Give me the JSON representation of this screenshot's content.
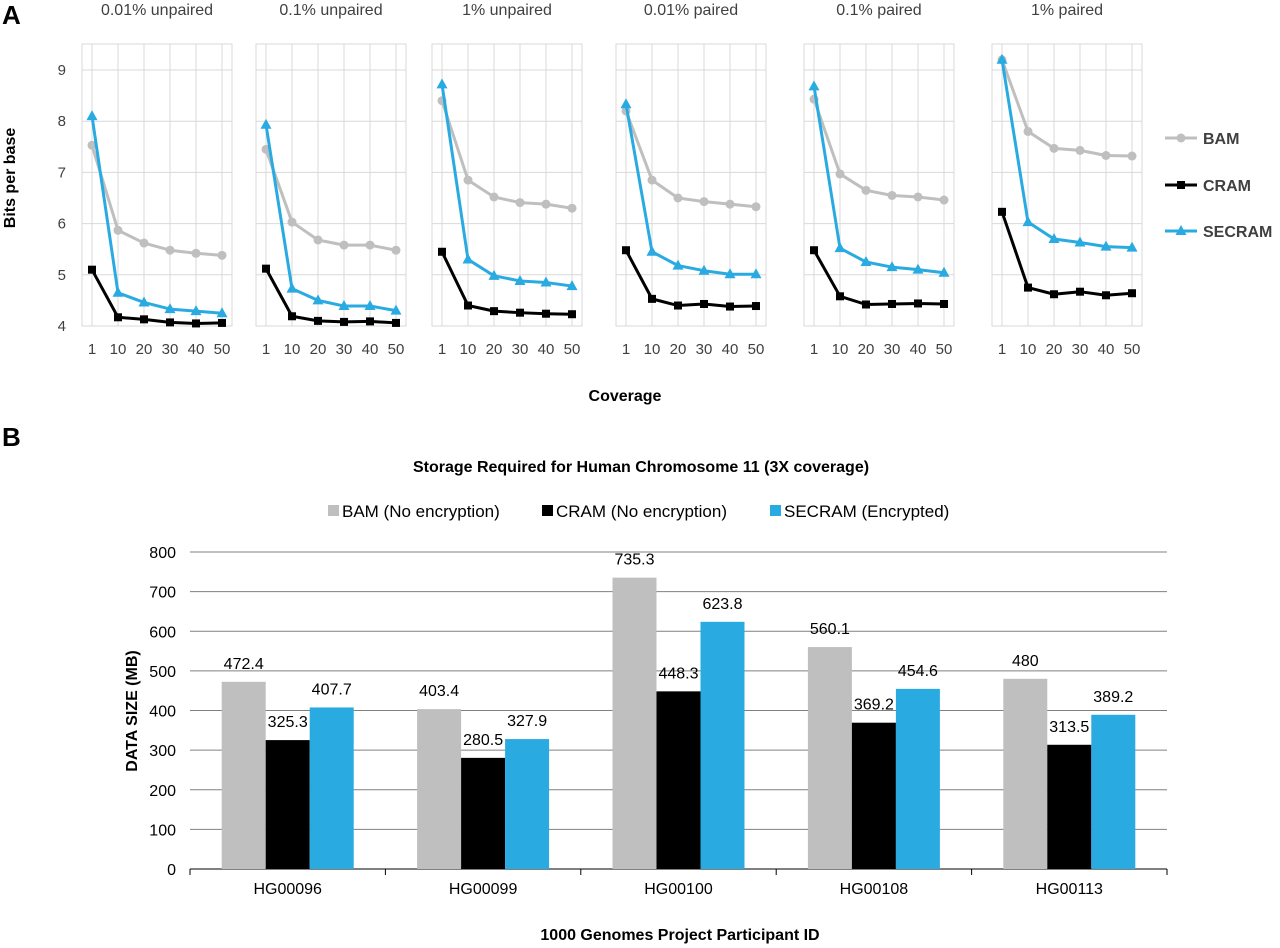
{
  "chart_data": [
    {
      "panel_label": "A",
      "type": "line",
      "facets": [
        {
          "title": "0.01% unpaired",
          "series": [
            {
              "name": "BAM",
              "values": [
                7.53,
                5.87,
                5.62,
                5.48,
                5.42,
                5.38
              ]
            },
            {
              "name": "CRAM",
              "values": [
                5.1,
                4.17,
                4.13,
                4.07,
                4.05,
                4.06
              ]
            },
            {
              "name": "SECRAM",
              "values": [
                8.1,
                4.65,
                4.46,
                4.33,
                4.29,
                4.25
              ]
            }
          ]
        },
        {
          "title": "0.1% unpaired",
          "series": [
            {
              "name": "BAM",
              "values": [
                7.45,
                6.03,
                5.68,
                5.58,
                5.58,
                5.48
              ]
            },
            {
              "name": "CRAM",
              "values": [
                5.12,
                4.19,
                4.1,
                4.08,
                4.09,
                4.06
              ]
            },
            {
              "name": "SECRAM",
              "values": [
                7.93,
                4.73,
                4.5,
                4.39,
                4.39,
                4.3
              ]
            }
          ]
        },
        {
          "title": "1% unpaired",
          "series": [
            {
              "name": "BAM",
              "values": [
                8.4,
                6.85,
                6.52,
                6.41,
                6.38,
                6.3
              ]
            },
            {
              "name": "CRAM",
              "values": [
                5.45,
                4.4,
                4.29,
                4.26,
                4.24,
                4.23
              ]
            },
            {
              "name": "SECRAM",
              "values": [
                8.72,
                5.3,
                4.98,
                4.88,
                4.85,
                4.78
              ]
            }
          ]
        },
        {
          "title": "0.01% paired",
          "series": [
            {
              "name": "BAM",
              "values": [
                8.2,
                6.85,
                6.5,
                6.43,
                6.38,
                6.33
              ]
            },
            {
              "name": "CRAM",
              "values": [
                5.48,
                4.53,
                4.4,
                4.43,
                4.38,
                4.39
              ]
            },
            {
              "name": "SECRAM",
              "values": [
                8.33,
                5.45,
                5.18,
                5.08,
                5.01,
                5.01
              ]
            }
          ]
        },
        {
          "title": "0.1% paired",
          "series": [
            {
              "name": "BAM",
              "values": [
                8.43,
                6.97,
                6.65,
                6.55,
                6.52,
                6.46
              ]
            },
            {
              "name": "CRAM",
              "values": [
                5.48,
                4.58,
                4.42,
                4.43,
                4.44,
                4.43
              ]
            },
            {
              "name": "SECRAM",
              "values": [
                8.68,
                5.52,
                5.25,
                5.15,
                5.1,
                5.04
              ]
            }
          ]
        },
        {
          "title": "1% paired",
          "series": [
            {
              "name": "BAM",
              "values": [
                9.2,
                7.8,
                7.47,
                7.43,
                7.33,
                7.32
              ]
            },
            {
              "name": "CRAM",
              "values": [
                6.23,
                4.75,
                4.62,
                4.67,
                4.6,
                4.64
              ]
            },
            {
              "name": "SECRAM",
              "values": [
                9.2,
                6.03,
                5.7,
                5.63,
                5.55,
                5.53
              ]
            }
          ]
        }
      ],
      "x": [
        "1",
        "10",
        "20",
        "30",
        "40",
        "50"
      ],
      "xlabel": "Coverage",
      "ylabel": "Bits per base",
      "yticks": [
        "4",
        "5",
        "6",
        "7",
        "8",
        "9"
      ],
      "ylim": [
        4,
        9.2
      ],
      "grid": true,
      "legend": {
        "placement": "right",
        "entries": [
          "BAM",
          "CRAM",
          "SECRAM"
        ]
      },
      "colors": {
        "BAM": "#bfbfbf",
        "CRAM": "#000000",
        "SECRAM": "#29abe2"
      },
      "markers": {
        "BAM": "circle",
        "CRAM": "square",
        "SECRAM": "triangle"
      }
    },
    {
      "panel_label": "B",
      "type": "bar",
      "title": "Storage Required for Human Chromosome 11 (3X coverage)",
      "categories": [
        "HG00096",
        "HG00099",
        "HG00100",
        "HG00108",
        "HG00113"
      ],
      "series": [
        {
          "name": "BAM (No encryption)",
          "values": [
            472.4,
            403.4,
            735.3,
            560.1,
            480
          ],
          "labels": [
            "472.4",
            "403.4",
            "735.3",
            "560.1",
            "480"
          ]
        },
        {
          "name": "CRAM (No encryption)",
          "values": [
            325.3,
            280.5,
            448.3,
            369.2,
            313.5
          ],
          "labels": [
            "325.3",
            "280.5",
            "448.3",
            "369.2",
            "313.5"
          ]
        },
        {
          "name": "SECRAM (Encrypted)",
          "values": [
            407.7,
            327.9,
            623.8,
            454.6,
            389.2
          ],
          "labels": [
            "407.7",
            "327.9",
            "623.8",
            "454.6",
            "389.2"
          ]
        }
      ],
      "xlabel": "1000 Genomes Project Participant ID",
      "ylabel": "DATA  SIZE (MB)",
      "yticks": [
        "0",
        "100",
        "200",
        "300",
        "400",
        "500",
        "600",
        "700",
        "800"
      ],
      "ylim": [
        0,
        800
      ],
      "grid": true,
      "legend": {
        "placement": "top"
      },
      "colors": [
        "#bfbfbf",
        "#000000",
        "#29abe2"
      ]
    }
  ]
}
